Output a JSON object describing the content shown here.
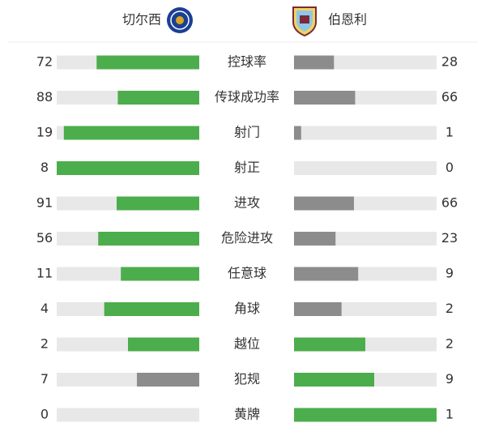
{
  "chart_data": {
    "type": "bar",
    "categories": [
      "控球率",
      "传球成功率",
      "射门",
      "射正",
      "进攻",
      "危险进攻",
      "任意球",
      "角球",
      "越位",
      "犯规",
      "黄牌"
    ],
    "series": [
      {
        "name": "切尔西",
        "values": [
          72,
          88,
          19,
          8,
          91,
          56,
          11,
          4,
          2,
          7,
          0
        ]
      },
      {
        "name": "伯恩利",
        "values": [
          28,
          66,
          1,
          0,
          66,
          23,
          9,
          2,
          2,
          9,
          1
        ]
      }
    ],
    "lead_color": "#4cad4c",
    "trail_color": "#8c8c8c",
    "track_color": "#e8e8e8"
  }
}
